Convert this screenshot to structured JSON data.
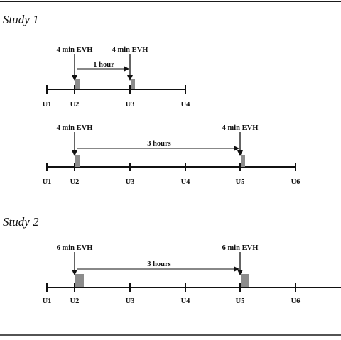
{
  "studies": [
    {
      "title": "Study 1",
      "protocols": [
        {
          "ticks": [
            "U1",
            "U2",
            "U3",
            "U4"
          ],
          "tests": [
            {
              "label": "4 min EVH",
              "at": "U2",
              "duration_min": 4
            },
            {
              "label": "4 min EVH",
              "at": "U3",
              "duration_min": 4
            }
          ],
          "interval": "1 hour"
        },
        {
          "ticks": [
            "U1",
            "U2",
            "U3",
            "U4",
            "U5",
            "U6"
          ],
          "tests": [
            {
              "label": "4 min EVH",
              "at": "U2",
              "duration_min": 4
            },
            {
              "label": "4 min EVH",
              "at": "U5",
              "duration_min": 4
            }
          ],
          "interval": "3 hours"
        }
      ]
    },
    {
      "title": "Study 2",
      "protocols": [
        {
          "ticks": [
            "U1",
            "U2",
            "U3",
            "U4",
            "U5",
            "U6"
          ],
          "tests": [
            {
              "label": "6 min EVH",
              "at": "U2",
              "duration_min": 6
            },
            {
              "label": "6 min EVH",
              "at": "U5",
              "duration_min": 6
            }
          ],
          "interval": "3 hours"
        }
      ]
    }
  ],
  "colors": {
    "frame": "#1a1a1a",
    "line": "#111111",
    "test_block": "#8c8c8c"
  }
}
